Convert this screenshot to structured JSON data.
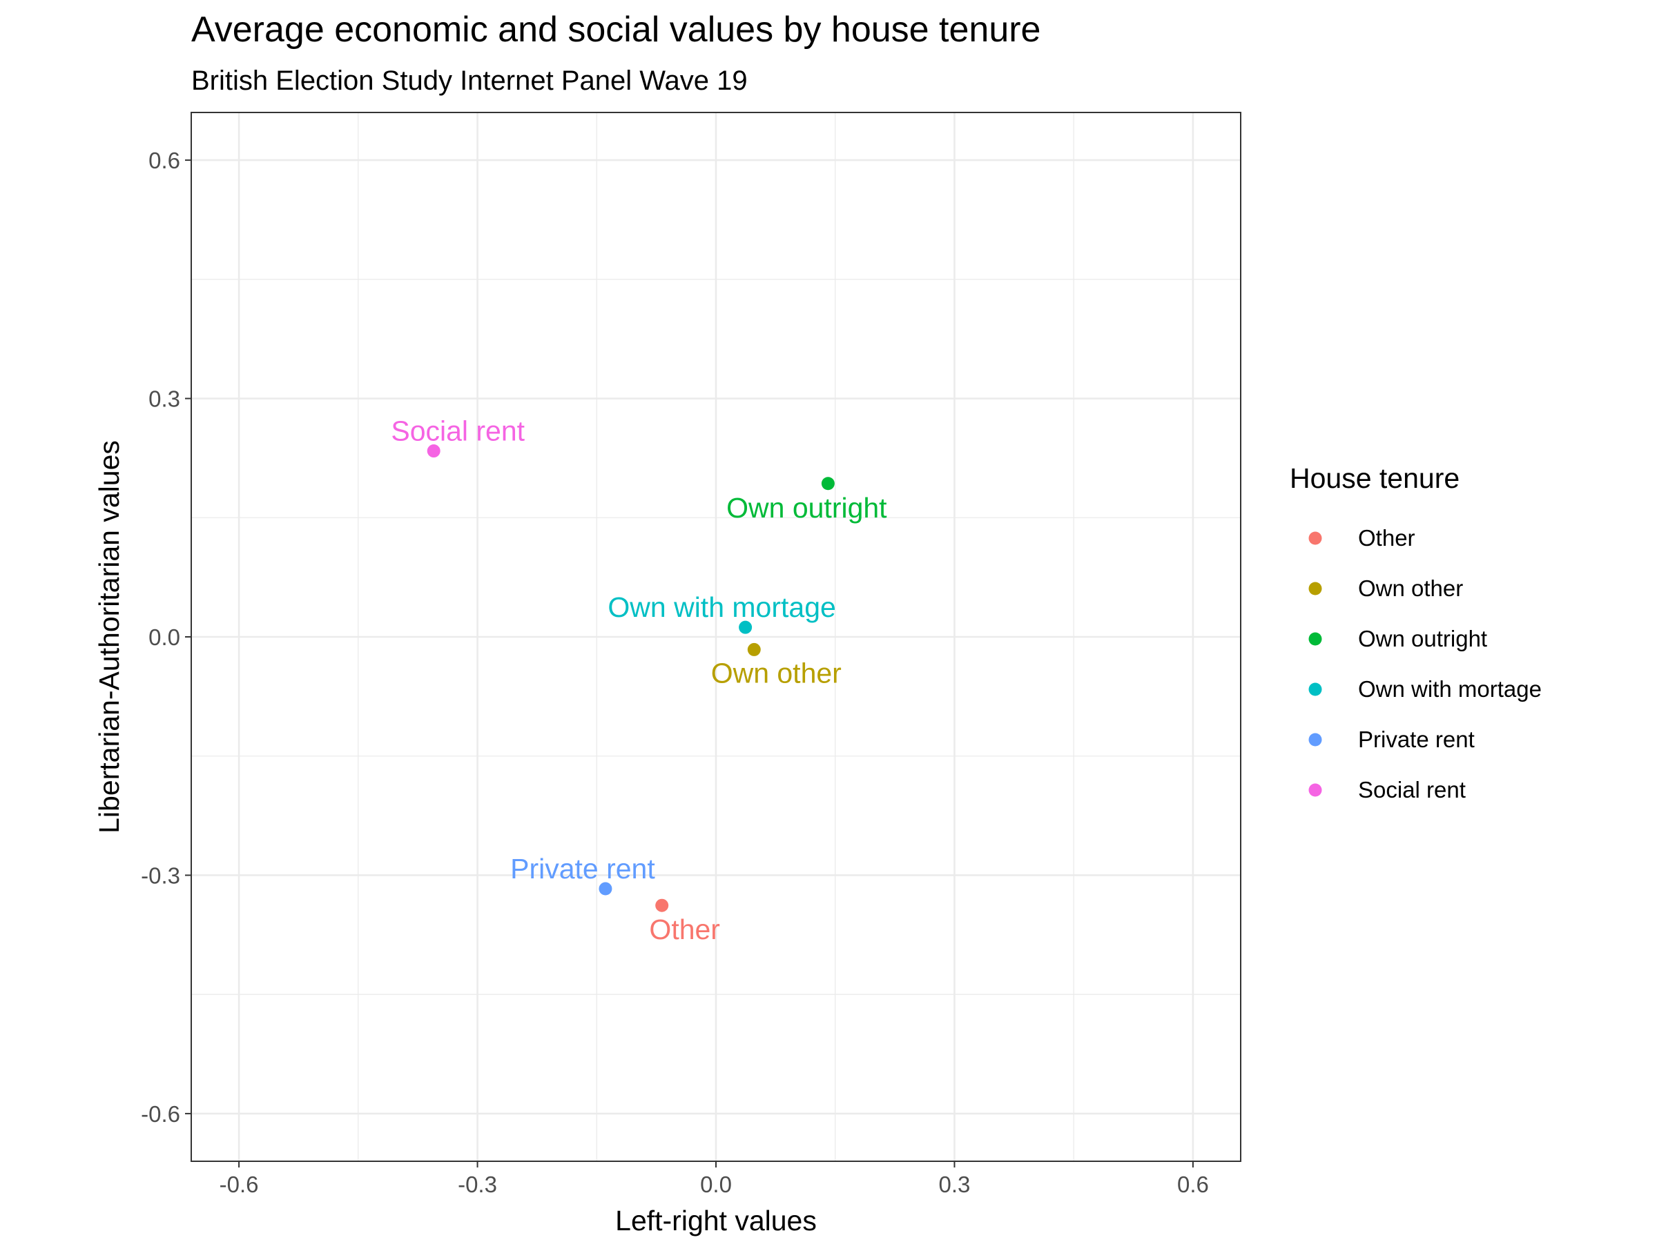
{
  "chart_data": {
    "type": "scatter",
    "title": "Average economic and social values by house tenure",
    "subtitle": "British Election Study Internet Panel Wave 19",
    "xlabel": "Left-right values",
    "ylabel": "Libertarian-Authoritarian values",
    "xlim": [
      -0.66,
      0.66
    ],
    "ylim": [
      -0.66,
      0.66
    ],
    "xticks": [
      -0.6,
      -0.3,
      0.0,
      0.3,
      0.6
    ],
    "yticks": [
      -0.6,
      -0.3,
      0.0,
      0.3,
      0.6
    ],
    "xtick_labels": [
      "-0.6",
      "-0.3",
      "0.0",
      "0.3",
      "0.6"
    ],
    "ytick_labels": [
      "-0.6",
      "-0.3",
      "0.0",
      "0.3",
      "0.6"
    ],
    "grid": true,
    "legend": {
      "title": "House tenure",
      "position": "right"
    },
    "series": [
      {
        "name": "Other",
        "color": "#F8766D",
        "x": -0.068,
        "y": -0.338
      },
      {
        "name": "Own other",
        "color": "#B79F00",
        "x": 0.048,
        "y": -0.016
      },
      {
        "name": "Own outright",
        "color": "#00BA38",
        "x": 0.141,
        "y": 0.193
      },
      {
        "name": "Own with mortage",
        "color": "#00BFC4",
        "x": 0.037,
        "y": 0.012
      },
      {
        "name": "Private rent",
        "color": "#619CFF",
        "x": -0.139,
        "y": -0.317
      },
      {
        "name": "Social rent",
        "color": "#F564E3",
        "x": -0.355,
        "y": 0.234
      }
    ]
  }
}
